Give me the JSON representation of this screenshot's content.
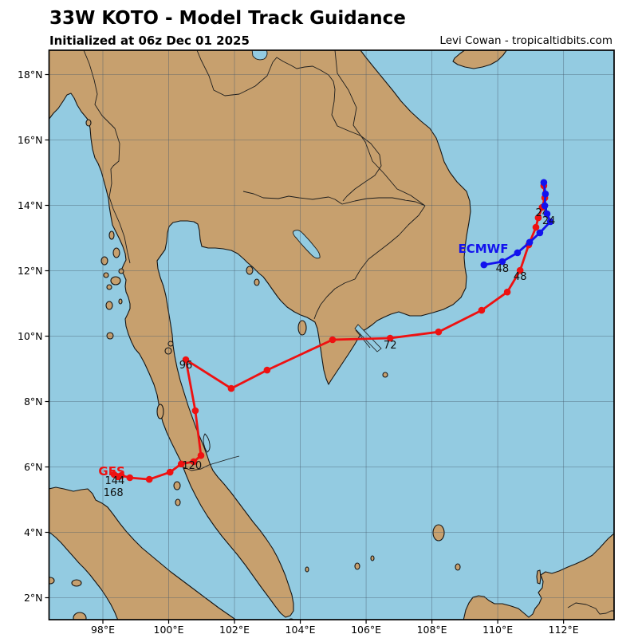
{
  "header": {
    "title": "33W KOTO - Model Track Guidance",
    "subtitle": "Initialized at 06z Dec 01 2025",
    "credit": "Levi Cowan - tropicaltidbits.com"
  },
  "colors": {
    "water": "#93cbe1",
    "land": "#c7a06e",
    "grid": "#45586a",
    "frame": "#000000",
    "gfs_red": "#ee1111",
    "ecmwf_blue": "#1212ee",
    "hour_label": "#101010"
  },
  "chart_data": {
    "type": "line",
    "title": "33W KOTO - Model Track Guidance",
    "subtitle": "Initialized at 06z Dec 01 2025",
    "extent": {
      "lon_min": 96.36,
      "lon_max": 113.54,
      "lat_min": 1.33,
      "lat_max": 18.74
    },
    "grid": true,
    "x_axis": {
      "ticks": [
        {
          "label": "98°E",
          "lon": 98
        },
        {
          "label": "100°E",
          "lon": 100
        },
        {
          "label": "102°E",
          "lon": 102
        },
        {
          "label": "104°E",
          "lon": 104
        },
        {
          "label": "106°E",
          "lon": 106
        },
        {
          "label": "108°E",
          "lon": 108
        },
        {
          "label": "110°E",
          "lon": 110
        },
        {
          "label": "112°E",
          "lon": 112
        }
      ]
    },
    "y_axis": {
      "ticks": [
        {
          "label": "2°N",
          "lat": 2
        },
        {
          "label": "4°N",
          "lat": 4
        },
        {
          "label": "6°N",
          "lat": 6
        },
        {
          "label": "8°N",
          "lat": 8
        },
        {
          "label": "10°N",
          "lat": 10
        },
        {
          "label": "12°N",
          "lat": 12
        },
        {
          "label": "14°N",
          "lat": 14
        },
        {
          "label": "16°N",
          "lat": 16
        },
        {
          "label": "18°N",
          "lat": 18
        }
      ]
    },
    "series": [
      {
        "name": "GFS",
        "color": "#ee1111",
        "label": {
          "text": "GFS",
          "lon": 98.27,
          "lat": 5.74
        },
        "points": [
          {
            "lon": 111.4,
            "lat": 14.6
          },
          {
            "lon": 111.43,
            "lat": 14.23
          },
          {
            "lon": 111.35,
            "lat": 13.94
          },
          {
            "lon": 111.23,
            "lat": 13.62
          },
          {
            "lon": 111.16,
            "lat": 13.33
          },
          {
            "lon": 110.94,
            "lat": 12.79
          },
          {
            "lon": 110.68,
            "lat": 12.01
          },
          {
            "lon": 110.29,
            "lat": 11.35
          },
          {
            "lon": 109.51,
            "lat": 10.79
          },
          {
            "lon": 108.2,
            "lat": 10.13
          },
          {
            "lon": 106.73,
            "lat": 9.94
          },
          {
            "lon": 104.98,
            "lat": 9.89
          },
          {
            "lon": 102.99,
            "lat": 8.96
          },
          {
            "lon": 101.9,
            "lat": 8.4
          },
          {
            "lon": 100.52,
            "lat": 9.28
          },
          {
            "lon": 100.81,
            "lat": 7.72
          },
          {
            "lon": 100.98,
            "lat": 6.35
          },
          {
            "lon": 100.76,
            "lat": 6.16
          },
          {
            "lon": 100.38,
            "lat": 6.09
          },
          {
            "lon": 100.04,
            "lat": 5.84
          },
          {
            "lon": 99.41,
            "lat": 5.62
          },
          {
            "lon": 98.82,
            "lat": 5.67
          },
          {
            "lon": 98.56,
            "lat": 5.74
          },
          {
            "lon": 98.46,
            "lat": 5.7
          },
          {
            "lon": 98.34,
            "lat": 5.77
          }
        ],
        "hour_labels": [
          {
            "text": "24",
            "lon": 111.35,
            "lat": 13.67
          },
          {
            "text": "48",
            "lon": 110.68,
            "lat": 11.72
          },
          {
            "text": "72",
            "lon": 106.73,
            "lat": 9.62
          },
          {
            "text": "96",
            "lon": 100.52,
            "lat": 9.01
          },
          {
            "text": "120",
            "lon": 100.71,
            "lat": 5.94
          },
          {
            "text": "144",
            "lon": 98.36,
            "lat": 5.48
          },
          {
            "text": "168",
            "lon": 98.32,
            "lat": 5.11
          }
        ]
      },
      {
        "name": "ECMWF",
        "color": "#1212ee",
        "label": {
          "text": "ECMWF",
          "lon": 109.56,
          "lat": 12.55
        },
        "points": [
          {
            "lon": 111.4,
            "lat": 14.7
          },
          {
            "lon": 111.45,
            "lat": 14.35
          },
          {
            "lon": 111.43,
            "lat": 13.99
          },
          {
            "lon": 111.5,
            "lat": 13.74
          },
          {
            "lon": 111.6,
            "lat": 13.5
          },
          {
            "lon": 111.28,
            "lat": 13.16
          },
          {
            "lon": 110.97,
            "lat": 12.87
          },
          {
            "lon": 110.6,
            "lat": 12.55
          },
          {
            "lon": 110.14,
            "lat": 12.28
          },
          {
            "lon": 109.58,
            "lat": 12.18
          }
        ],
        "hour_labels": [
          {
            "text": "24",
            "lon": 111.55,
            "lat": 13.43
          },
          {
            "text": "48",
            "lon": 110.14,
            "lat": 11.96
          }
        ]
      }
    ]
  }
}
